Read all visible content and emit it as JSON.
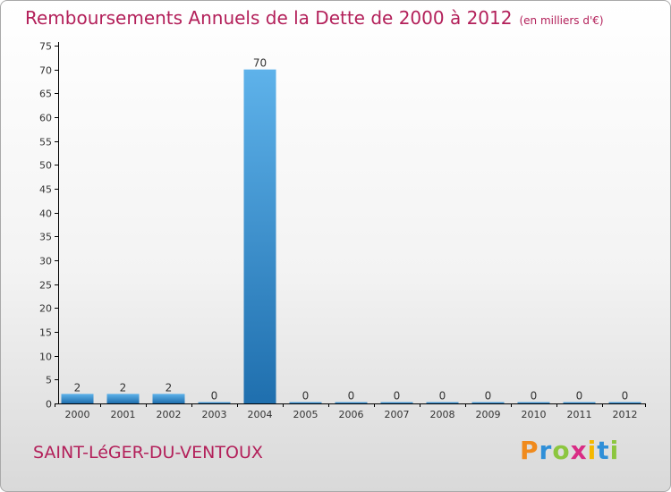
{
  "header": {
    "title": "Remboursements Annuels de la Dette de 2000 à 2012",
    "unit": "(en milliers d'€)"
  },
  "footer": {
    "commune": "SAINT-LéGER-DU-VENTOUX",
    "logo_letters": [
      "P",
      "r",
      "o",
      "x",
      "i",
      "t",
      "i"
    ],
    "logo_colors": [
      "#f08a1c",
      "#2f8fd8",
      "#8cc63f",
      "#d92c85",
      "#f5b800",
      "#2f8fd8",
      "#8cc63f"
    ]
  },
  "colors": {
    "title": "#b3205a",
    "bar_top": "#5eb2ea",
    "bar_bottom": "#1f6fae",
    "axis": "#000000"
  },
  "chart_data": {
    "type": "bar",
    "title": "Remboursements Annuels de la Dette de 2000 à 2012",
    "ylabel": "(en milliers d'€)",
    "xlabel": "",
    "categories": [
      "2000",
      "2001",
      "2002",
      "2003",
      "2004",
      "2005",
      "2006",
      "2007",
      "2008",
      "2009",
      "2010",
      "2011",
      "2012"
    ],
    "values": [
      2,
      2,
      2,
      0,
      70,
      0,
      0,
      0,
      0,
      0,
      0,
      0,
      0
    ],
    "data_labels": [
      "2",
      "2",
      "2",
      "0",
      "70",
      "0",
      "0",
      "0",
      "0",
      "0",
      "0",
      "0",
      "0"
    ],
    "ylim": [
      0,
      75
    ],
    "yticks": [
      "0",
      "5",
      "10",
      "15",
      "20",
      "25",
      "30",
      "35",
      "40",
      "45",
      "50",
      "55",
      "60",
      "65",
      "70",
      "75"
    ],
    "grid": false,
    "legend": "none"
  }
}
